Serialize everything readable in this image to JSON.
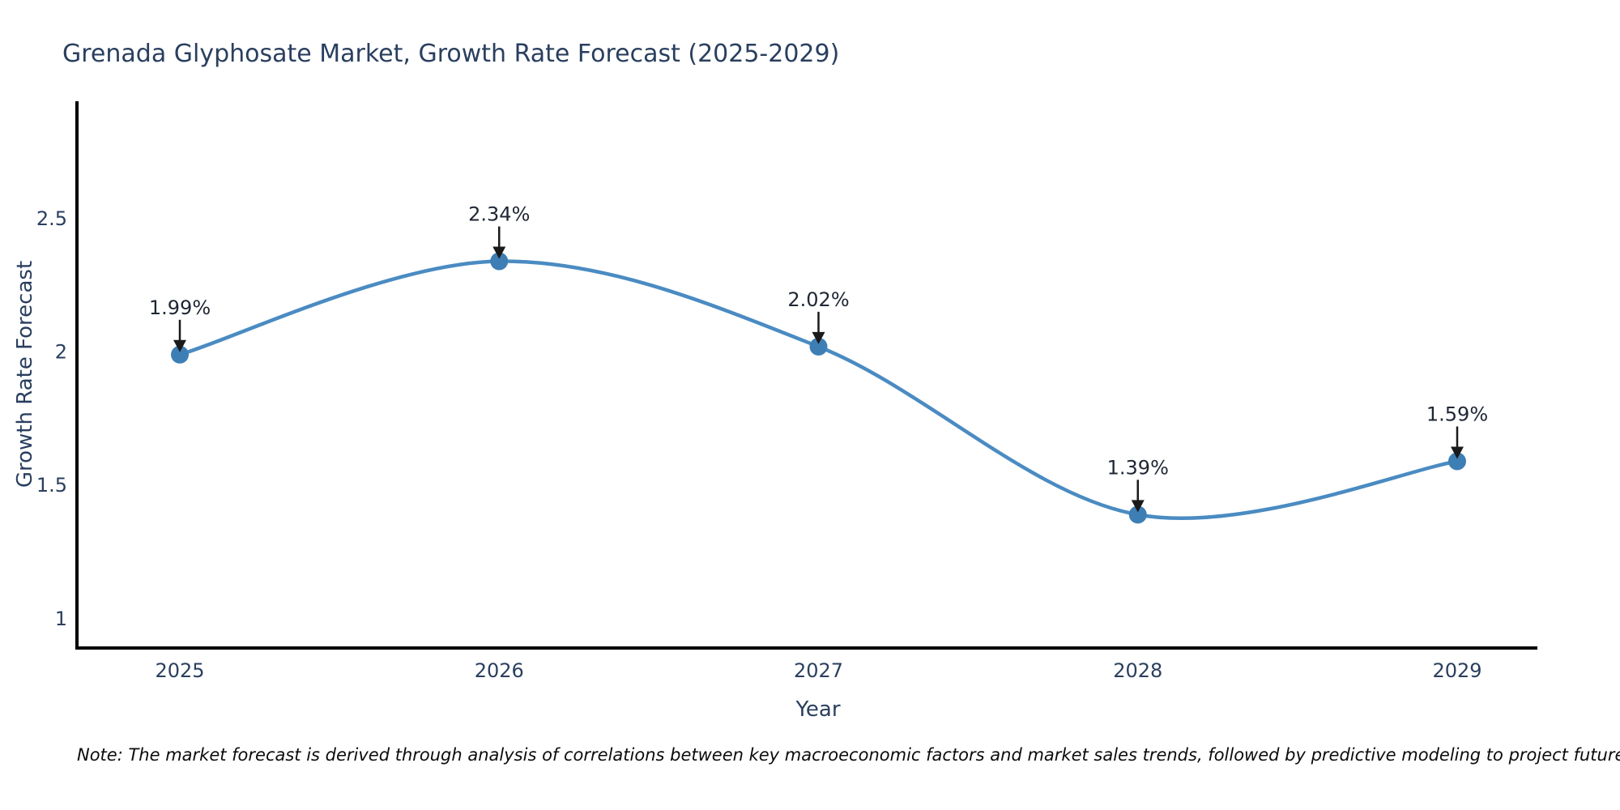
{
  "page": {
    "note": "Note: The market forecast is derived through analysis of correlations between key macroeconomic factors and market sales trends, followed by predictive modeling to project future sales"
  },
  "chart_data": {
    "type": "line",
    "title": "Grenada Glyphosate Market, Growth Rate Forecast (2025-2029)",
    "xlabel": "Year",
    "ylabel": "Growth Rate Forecast",
    "categories": [
      "2025",
      "2026",
      "2027",
      "2028",
      "2029"
    ],
    "values": [
      1.99,
      2.34,
      2.02,
      1.39,
      1.59
    ],
    "point_labels": [
      "1.99%",
      "2.34%",
      "2.02%",
      "1.39%",
      "1.59%"
    ],
    "yticks": [
      1,
      1.5,
      2,
      2.5
    ],
    "ytick_labels": [
      "1",
      "1.5",
      "2",
      "2.5"
    ],
    "ylim": [
      0.89,
      2.94
    ],
    "line_shape": "spline",
    "grid": false,
    "legend": "none",
    "annotations_arrows": true,
    "colors": {
      "line": "#4a8bc2",
      "marker": "#3d7eb5",
      "axis": "#000000",
      "tick_text": "#2a3f5f",
      "annotation_text": "#1f2633",
      "arrow": "#1a1a1a",
      "background": "#ffffff"
    }
  }
}
